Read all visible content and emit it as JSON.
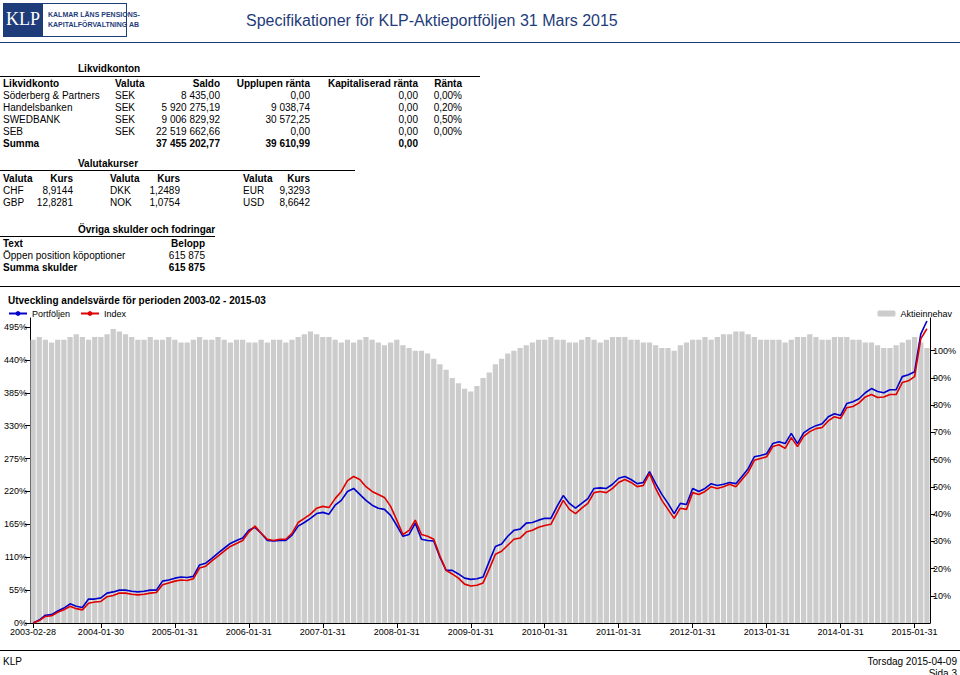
{
  "header": {
    "logo": "KLP",
    "logo_text": [
      "KALMAR LÄNS PENSIONS-",
      "KAPITALFÖRVALTNING AB"
    ],
    "title": "Specifikationer för KLP-Aktieportföljen 31 Mars 2015"
  },
  "likvidkonton": {
    "title": "Likvidkonton",
    "columns": [
      "Likvidkonto",
      "Valuta",
      "Saldo",
      "Upplupen ränta",
      "Kapitaliserad ränta",
      "Ränta"
    ],
    "rows": [
      [
        "Söderberg & Partners",
        "SEK",
        "8 435,00",
        "0,00",
        "0,00",
        "0,00%"
      ],
      [
        "Handelsbanken",
        "SEK",
        "5 920 275,19",
        "9 038,74",
        "0,00",
        "0,20%"
      ],
      [
        "SWEDBANK",
        "SEK",
        "9 006 829,92",
        "30 572,25",
        "0,00",
        "0,50%"
      ],
      [
        "SEB",
        "SEK",
        "22 519 662,66",
        "0,00",
        "0,00",
        "0,00%"
      ]
    ],
    "sum": {
      "label": "Summa",
      "saldo": "37 455 202,77",
      "upplupen": "39 610,99",
      "kapitaliserad": "0,00"
    }
  },
  "valutakurser": {
    "title": "Valutakurser",
    "columns": [
      "Valuta",
      "Kurs",
      "Valuta",
      "Kurs",
      "Valuta",
      "Kurs"
    ],
    "rows": [
      [
        "CHF",
        "8,9144",
        "DKK",
        "1,2489",
        "EUR",
        "9,3293"
      ],
      [
        "GBP",
        "12,8281",
        "NOK",
        "1,0754",
        "USD",
        "8,6642"
      ]
    ]
  },
  "ovriga": {
    "title": "Övriga skulder och fodringar",
    "columns": [
      "Text",
      "Belopp"
    ],
    "rows": [
      [
        "Öppen position köpoptioner",
        "615 875"
      ]
    ],
    "sum": [
      "Summa skulder",
      "615 875"
    ]
  },
  "chart_data": {
    "type": "line",
    "title": "Utveckling andelsvärde för perioden 2003-02 - 2015-03",
    "categories": [
      "2003-02-28",
      null,
      null,
      null,
      null,
      null,
      null,
      null,
      null,
      null,
      null,
      "2004-01-30",
      null,
      null,
      null,
      null,
      null,
      null,
      null,
      null,
      null,
      null,
      null,
      "2005-01-31",
      null,
      null,
      null,
      null,
      null,
      null,
      null,
      null,
      null,
      null,
      null,
      "2006-01-31",
      null,
      null,
      null,
      null,
      null,
      null,
      null,
      null,
      null,
      null,
      null,
      "2007-01-31",
      null,
      null,
      null,
      null,
      null,
      null,
      null,
      null,
      null,
      null,
      null,
      "2008-01-31",
      null,
      null,
      null,
      null,
      null,
      null,
      null,
      null,
      null,
      null,
      null,
      "2009-01-31",
      null,
      null,
      null,
      null,
      null,
      null,
      null,
      null,
      null,
      null,
      null,
      "2010-01-31",
      null,
      null,
      null,
      null,
      null,
      null,
      null,
      null,
      null,
      null,
      null,
      "2011-01-31",
      null,
      null,
      null,
      null,
      null,
      null,
      null,
      null,
      null,
      null,
      null,
      "2012-01-31",
      null,
      null,
      null,
      null,
      null,
      null,
      null,
      null,
      null,
      null,
      null,
      "2013-01-31",
      null,
      null,
      null,
      null,
      null,
      null,
      null,
      null,
      null,
      null,
      null,
      "2014-01-31",
      null,
      null,
      null,
      null,
      null,
      null,
      null,
      null,
      null,
      null,
      null,
      "2015-01-31",
      null,
      null
    ],
    "series": [
      {
        "name": "Portföljen",
        "color": "#0000cc",
        "type": "line",
        "values": [
          0,
          5,
          13,
          14,
          20,
          25,
          32,
          28,
          26,
          40,
          40,
          42,
          50,
          52,
          55,
          55,
          53,
          52,
          53,
          55,
          55,
          70,
          72,
          75,
          77,
          76,
          78,
          97,
          100,
          108,
          117,
          125,
          133,
          138,
          142,
          155,
          160,
          150,
          138,
          137,
          138,
          138,
          147,
          162,
          168,
          175,
          183,
          185,
          182,
          197,
          205,
          220,
          225,
          215,
          205,
          197,
          192,
          190,
          180,
          163,
          145,
          148,
          167,
          140,
          138,
          137,
          110,
          88,
          88,
          82,
          75,
          73,
          74,
          77,
          103,
          128,
          132,
          145,
          155,
          157,
          167,
          168,
          172,
          175,
          175,
          195,
          213,
          200,
          192,
          200,
          208,
          225,
          226,
          225,
          232,
          242,
          245,
          240,
          233,
          235,
          253,
          233,
          215,
          200,
          183,
          200,
          198,
          225,
          220,
          225,
          233,
          230,
          232,
          235,
          233,
          245,
          258,
          278,
          280,
          283,
          300,
          303,
          300,
          317,
          300,
          318,
          325,
          330,
          333,
          345,
          350,
          347,
          367,
          370,
          375,
          385,
          392,
          387,
          385,
          390,
          390,
          412,
          415,
          420,
          483,
          505
        ]
      },
      {
        "name": "Index",
        "color": "#e00000",
        "type": "line",
        "values": [
          0,
          4,
          11,
          12,
          18,
          22,
          28,
          24,
          22,
          33,
          35,
          36,
          44,
          46,
          50,
          50,
          48,
          47,
          48,
          50,
          51,
          64,
          67,
          70,
          72,
          71,
          74,
          92,
          95,
          104,
          112,
          120,
          128,
          133,
          138,
          152,
          162,
          150,
          140,
          138,
          140,
          140,
          150,
          168,
          175,
          182,
          192,
          195,
          193,
          208,
          220,
          238,
          245,
          240,
          228,
          220,
          215,
          210,
          195,
          172,
          148,
          155,
          172,
          148,
          145,
          140,
          112,
          88,
          82,
          75,
          65,
          62,
          63,
          67,
          90,
          115,
          120,
          130,
          140,
          142,
          152,
          155,
          160,
          163,
          165,
          185,
          205,
          190,
          183,
          192,
          200,
          218,
          220,
          218,
          225,
          235,
          240,
          235,
          228,
          230,
          250,
          225,
          205,
          190,
          175,
          192,
          190,
          218,
          215,
          220,
          228,
          225,
          228,
          232,
          228,
          240,
          252,
          272,
          275,
          278,
          295,
          298,
          292,
          310,
          295,
          312,
          320,
          325,
          327,
          338,
          345,
          342,
          360,
          362,
          368,
          378,
          382,
          377,
          378,
          382,
          382,
          402,
          405,
          412,
          475,
          492
        ]
      },
      {
        "name": "Aktieinnehav",
        "color": "#cccccc",
        "type": "bar",
        "axis": "y2",
        "values": [
          104,
          105,
          104,
          103,
          104,
          104,
          105,
          106,
          105,
          104,
          105,
          105,
          106,
          108,
          107,
          106,
          105,
          104,
          104,
          105,
          104,
          104,
          105,
          104,
          103,
          103,
          104,
          105,
          104,
          104,
          105,
          104,
          103,
          104,
          104,
          103,
          103,
          104,
          103,
          104,
          104,
          103,
          104,
          105,
          106,
          107,
          106,
          105,
          105,
          104,
          103,
          104,
          103,
          104,
          105,
          104,
          103,
          102,
          103,
          104,
          102,
          101,
          100,
          100,
          99,
          97,
          95,
          93,
          90,
          88,
          86,
          85,
          87,
          90,
          92,
          95,
          97,
          99,
          100,
          101,
          102,
          103,
          104,
          104,
          105,
          104,
          104,
          103,
          103,
          104,
          105,
          104,
          103,
          104,
          105,
          105,
          105,
          104,
          104,
          103,
          103,
          102,
          101,
          101,
          100,
          102,
          103,
          104,
          104,
          105,
          104,
          105,
          106,
          106,
          107,
          107,
          106,
          105,
          104,
          104,
          104,
          104,
          103,
          104,
          105,
          105,
          106,
          105,
          104,
          104,
          105,
          105,
          105,
          104,
          104,
          103,
          103,
          102,
          101,
          101,
          102,
          103,
          104,
          105,
          103,
          101
        ]
      }
    ],
    "ylim": [
      0,
      510
    ],
    "yticks": [
      {
        "value": 0,
        "label": "0%"
      },
      {
        "value": 55,
        "label": "55%"
      },
      {
        "value": 110,
        "label": "110%"
      },
      {
        "value": 165,
        "label": "165%"
      },
      {
        "value": 220,
        "label": "220%"
      },
      {
        "value": 275,
        "label": "275%"
      },
      {
        "value": 330,
        "label": "330%"
      },
      {
        "value": 385,
        "label": "385%"
      },
      {
        "value": 440,
        "label": "440%"
      },
      {
        "value": 495,
        "label": "495%"
      }
    ],
    "y2lim": [
      0,
      112
    ],
    "y2ticks": [
      {
        "value": 10,
        "label": "10%"
      },
      {
        "value": 20,
        "label": "20%"
      },
      {
        "value": 30,
        "label": "30%"
      },
      {
        "value": 40,
        "label": "40%"
      },
      {
        "value": 50,
        "label": "50%"
      },
      {
        "value": 60,
        "label": "60%"
      },
      {
        "value": 70,
        "label": "70%"
      },
      {
        "value": 80,
        "label": "80%"
      },
      {
        "value": 90,
        "label": "90%"
      },
      {
        "value": 100,
        "label": "100%"
      }
    ],
    "grid": false,
    "legend": "top"
  },
  "footer": {
    "left": "KLP",
    "date": "Torsdag 2015-04-09",
    "page": "Sida 3"
  }
}
